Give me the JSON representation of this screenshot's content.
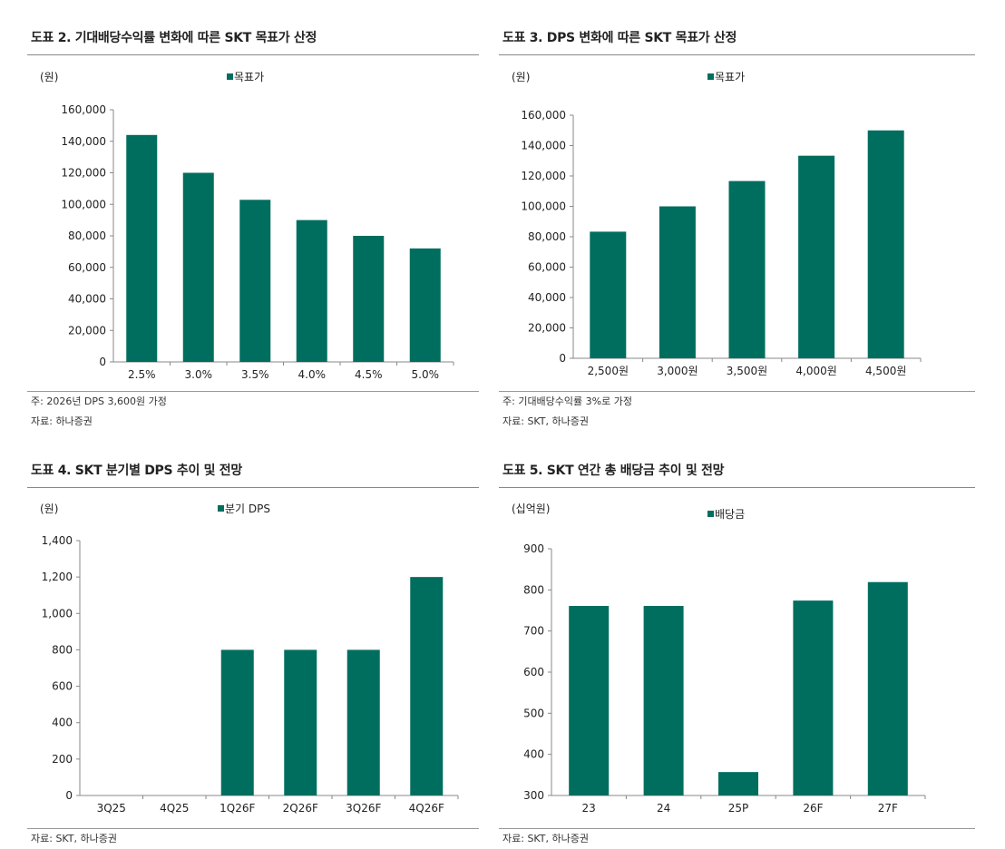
{
  "colors": {
    "bar": "#006e5e",
    "axis": "#888888"
  },
  "chart_data": [
    {
      "type": "bar",
      "title": "도표 2. 기대배당수익률 변화에 따른 SKT 목표가 산정",
      "unit": "(원)",
      "legend": "목표가",
      "legend_position": "top-center",
      "categories": [
        "2.5%",
        "3.0%",
        "3.5%",
        "4.0%",
        "4.5%",
        "5.0%"
      ],
      "values": [
        144000,
        120000,
        102857,
        90000,
        80000,
        72000
      ],
      "ylim": [
        0,
        160000
      ],
      "yticks": [
        "0",
        "20,000",
        "40,000",
        "60,000",
        "80,000",
        "100,000",
        "120,000",
        "140,000",
        "160,000"
      ],
      "notes": [
        "주: 2026년 DPS 3,600원 가정",
        "자료: 하나증권"
      ]
    },
    {
      "type": "bar",
      "title": "도표 3. DPS 변화에 따른 SKT 목표가 산정",
      "unit": "(원)",
      "legend": "목표가",
      "legend_position": "top-center",
      "categories": [
        "2,500원",
        "3,000원",
        "3,500원",
        "4,000원",
        "4,500원"
      ],
      "values": [
        83333,
        100000,
        116667,
        133333,
        150000
      ],
      "ylim": [
        0,
        160000
      ],
      "yticks": [
        "0",
        "20,000",
        "40,000",
        "60,000",
        "80,000",
        "100,000",
        "120,000",
        "140,000",
        "160,000"
      ],
      "notes": [
        "주: 기대배당수익률 3%로 가정",
        "자료: SKT, 하나증권"
      ]
    },
    {
      "type": "bar",
      "title": "도표 4. SKT 분기별 DPS 추이 및 전망",
      "unit": "(원)",
      "legend": "분기 DPS",
      "legend_position": "top-center",
      "categories": [
        "3Q25",
        "4Q25",
        "1Q26F",
        "2Q26F",
        "3Q26F",
        "4Q26F"
      ],
      "values": [
        0,
        0,
        800,
        800,
        800,
        1200
      ],
      "ylim": [
        0,
        1400
      ],
      "yticks": [
        "0",
        "200",
        "400",
        "600",
        "800",
        "1,000",
        "1,200",
        "1,400"
      ],
      "notes": [
        "자료: SKT, 하나증권"
      ]
    },
    {
      "type": "bar",
      "title": "도표 5. SKT 연간 총 배당금 추이 및 전망",
      "unit": "(십억원)",
      "legend": "배당금",
      "legend_position": "top-center",
      "categories": [
        "23",
        "24",
        "25P",
        "26F",
        "27F"
      ],
      "values": [
        761,
        761,
        357,
        774,
        819
      ],
      "ylim": [
        300,
        900
      ],
      "yticks": [
        "300",
        "400",
        "500",
        "600",
        "700",
        "800",
        "900"
      ],
      "notes": [
        "자료: SKT, 하나증권"
      ]
    }
  ]
}
